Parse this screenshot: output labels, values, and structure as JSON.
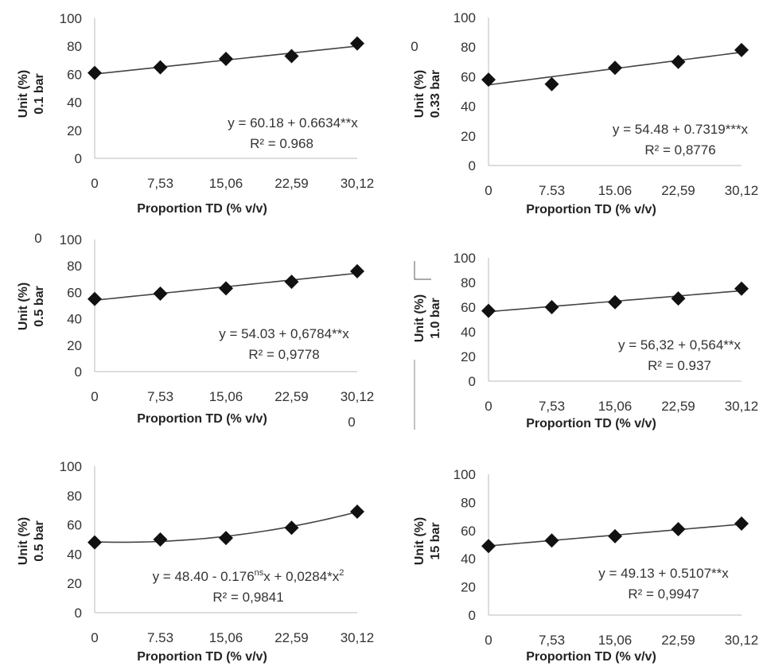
{
  "figure": {
    "stray_zero_labels": [
      "0",
      "0",
      "0"
    ]
  },
  "chart_data": [
    {
      "type": "scatter",
      "ylabel_unit": "Unit (%)",
      "ylabel_pressure": "0.1 bar",
      "xlabel": "Proportion TD (% v/v)",
      "categories": [
        "0",
        "7,53",
        "15,06",
        "22,59",
        "30,12"
      ],
      "x": [
        0,
        7.53,
        15.06,
        22.59,
        30.12
      ],
      "values": [
        61,
        65,
        71,
        73,
        82
      ],
      "ylim": [
        0,
        100
      ],
      "yticks": [
        "0",
        "20",
        "40",
        "60",
        "80",
        "100"
      ],
      "trendline": {
        "intercept": 60.18,
        "linear": 0.6634,
        "quadratic": 0
      },
      "equation": "y = 60.18 + 0.6634**x",
      "r2_label": "R² = 0.968",
      "grid": false
    },
    {
      "type": "scatter",
      "ylabel_unit": "Unit (%)",
      "ylabel_pressure": "0.33 bar",
      "xlabel": "Proportion TD (% v/v)",
      "categories": [
        "0",
        "7.53",
        "15.06",
        "22,59",
        "30,12"
      ],
      "x": [
        0,
        7.53,
        15.06,
        22.59,
        30.12
      ],
      "values": [
        58,
        55,
        66,
        70,
        78
      ],
      "ylim": [
        0,
        100
      ],
      "yticks": [
        "0",
        "10",
        "20",
        "30",
        "40",
        "50",
        "60",
        "70",
        "80",
        "90",
        "100"
      ],
      "yticks_major": [
        "0",
        "20",
        "40",
        "60",
        "80",
        "100"
      ],
      "trendline": {
        "intercept": 54.48,
        "linear": 0.7319,
        "quadratic": 0
      },
      "equation": "y = 54.48 + 0.7319***x",
      "r2_label": "R² = 0,8776",
      "grid": false
    },
    {
      "type": "scatter",
      "ylabel_unit": "Unit (%)",
      "ylabel_pressure": "0.5 bar",
      "xlabel": "Proportion TD (% v/v)",
      "categories": [
        "0",
        "7,53",
        "15,06",
        "22,59",
        "30,12"
      ],
      "x": [
        0,
        7.53,
        15.06,
        22.59,
        30.12
      ],
      "values": [
        55,
        59,
        63,
        68,
        76
      ],
      "ylim": [
        0,
        100
      ],
      "yticks": [
        "0",
        "20",
        "40",
        "60",
        "80",
        "100"
      ],
      "trendline": {
        "intercept": 54.03,
        "linear": 0.6784,
        "quadratic": 0
      },
      "equation": "y = 54.03 + 0,6784**x",
      "r2_label": "R² = 0,9778",
      "grid": false
    },
    {
      "type": "scatter",
      "ylabel_unit": "Unit (%)",
      "ylabel_pressure": "1.0 bar",
      "xlabel": "Proportion TD (% v/v)",
      "categories": [
        "0",
        "7,53",
        "15,06",
        "22,59",
        "30,12"
      ],
      "x": [
        0,
        7.53,
        15.06,
        22.59,
        30.12
      ],
      "values": [
        57,
        60,
        64,
        67,
        75
      ],
      "ylim": [
        0,
        100
      ],
      "yticks": [
        "0",
        "10",
        "20",
        "30",
        "40",
        "50",
        "60",
        "70",
        "80",
        "90",
        "100"
      ],
      "yticks_major": [
        "0",
        "20",
        "40",
        "60",
        "80",
        "100"
      ],
      "trendline": {
        "intercept": 56.32,
        "linear": 0.564,
        "quadratic": 0
      },
      "equation": "y = 56,32 + 0,564**x",
      "r2_label": "R² = 0.937",
      "grid": false
    },
    {
      "type": "scatter",
      "ylabel_unit": "Unit (%)",
      "ylabel_pressure": "0.5 bar",
      "xlabel": "Proportion TD (% v/v)",
      "categories": [
        "0",
        "7.53",
        "15,06",
        "22,59",
        "30,12"
      ],
      "x": [
        0,
        7.53,
        15.06,
        22.59,
        30.12
      ],
      "values": [
        48,
        50,
        51,
        58,
        69
      ],
      "ylim": [
        0,
        100
      ],
      "yticks": [
        "0",
        "20",
        "40",
        "60",
        "80",
        "100"
      ],
      "trendline": {
        "intercept": 48.4,
        "linear": -0.176,
        "quadratic": 0.0284
      },
      "equation_prefix": "y = 48.40 - 0.176",
      "equation_sup1": "ns",
      "equation_mid": "x + 0,0284*x",
      "equation_sup2": "2",
      "r2_label": "R² = 0,9841",
      "grid": false
    },
    {
      "type": "scatter",
      "ylabel_unit": "Unit (%)",
      "ylabel_pressure": "15 bar",
      "xlabel": "Proportion TD (% v/v)",
      "categories": [
        "0",
        "7,53",
        "15,06",
        "22,59",
        "30,12"
      ],
      "x": [
        0,
        7.53,
        15.06,
        22.59,
        30.12
      ],
      "values": [
        49,
        53,
        56,
        61,
        65
      ],
      "ylim": [
        0,
        100
      ],
      "yticks": [
        "0",
        "20",
        "40",
        "60",
        "80",
        "100"
      ],
      "trendline": {
        "intercept": 49.13,
        "linear": 0.5107,
        "quadratic": 0
      },
      "equation": "y = 49.13 + 0.5107**x",
      "r2_label": "R² = 0,9947",
      "grid": false
    }
  ]
}
